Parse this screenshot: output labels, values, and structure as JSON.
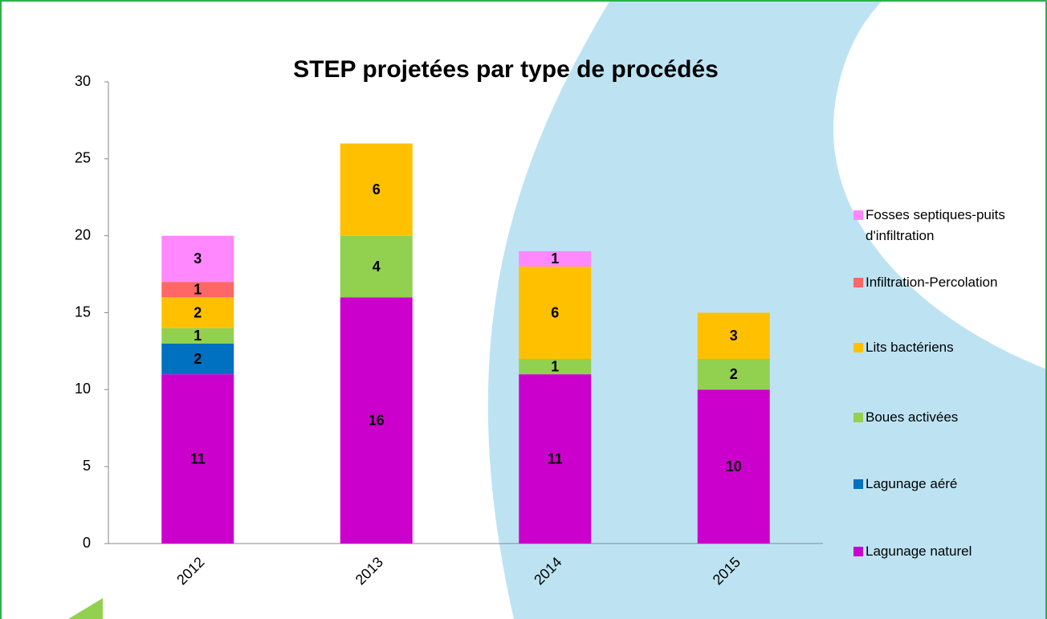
{
  "chart_data": {
    "type": "stacked-bar",
    "title": "STEP  projetées par type de procédés",
    "categories": [
      "2012",
      "2013",
      "2014",
      "2015"
    ],
    "series": [
      {
        "name": "Lagunage naturel",
        "color": "#cc00cc",
        "values": [
          11,
          16,
          11,
          10
        ]
      },
      {
        "name": "Lagunage aéré",
        "color": "#0070c0",
        "values": [
          2,
          null,
          null,
          null
        ]
      },
      {
        "name": "Boues activées",
        "color": "#92d050",
        "values": [
          1,
          4,
          1,
          2
        ]
      },
      {
        "name": "Lits bactériens",
        "color": "#ffc000",
        "values": [
          2,
          6,
          6,
          3
        ]
      },
      {
        "name": "Infiltration-Percolation",
        "color": "#ff6666",
        "values": [
          1,
          null,
          null,
          null
        ]
      },
      {
        "name": "Fosses septiques-puits d'infiltration",
        "color": "#ff88ff",
        "values": [
          3,
          null,
          1,
          null
        ]
      }
    ],
    "ylim": [
      0,
      30
    ],
    "yticks": [
      0,
      5,
      10,
      15,
      20,
      25,
      30
    ],
    "legend": "right"
  }
}
